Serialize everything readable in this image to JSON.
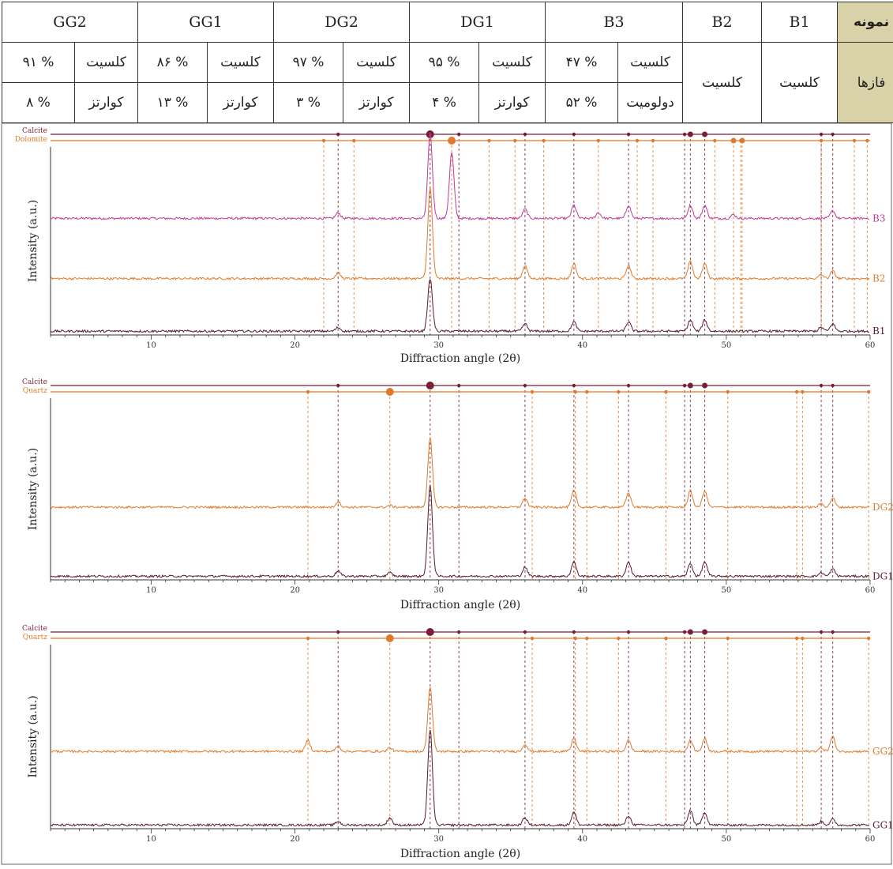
{
  "table": {
    "header_label": "نمونه",
    "row_label": "فازها",
    "samples": [
      {
        "name": "B1",
        "phases": [
          {
            "mineral": "کلسیت",
            "pct": ""
          }
        ]
      },
      {
        "name": "B2",
        "phases": [
          {
            "mineral": "کلسیت",
            "pct": ""
          }
        ]
      },
      {
        "name": "B3",
        "phases": [
          {
            "mineral": "کلسیت",
            "pct": "۴۷ %"
          },
          {
            "mineral": "دولومیت",
            "pct": "۵۲ %"
          }
        ]
      },
      {
        "name": "DG1",
        "phases": [
          {
            "mineral": "کلسیت",
            "pct": "۹۵ %"
          },
          {
            "mineral": "کوارتز",
            "pct": "۴ %"
          }
        ]
      },
      {
        "name": "DG2",
        "phases": [
          {
            "mineral": "کلسیت",
            "pct": "۹۷ %"
          },
          {
            "mineral": "کوارتز",
            "pct": "۳ %"
          }
        ]
      },
      {
        "name": "GG1",
        "phases": [
          {
            "mineral": "کلسیت",
            "pct": "۸۶ %"
          },
          {
            "mineral": "کوارتز",
            "pct": "۱۳ %"
          }
        ]
      },
      {
        "name": "GG2",
        "phases": [
          {
            "mineral": "کلسیت",
            "pct": "۹۱ %"
          },
          {
            "mineral": "کوارتز",
            "pct": "۸ %"
          }
        ]
      }
    ]
  },
  "colors": {
    "calcite": "#7a1f33",
    "dolomite": "#e07a2a",
    "quartz": "#e07a2a",
    "b1": "#5a1a28",
    "b2": "#e07a2a",
    "b3": "#c0399a",
    "dg1": "#5a1a28",
    "dg2": "#e07a2a",
    "gg1": "#5a1a28",
    "gg2": "#e07a2a",
    "table_header_bg": "#d9d2a8"
  },
  "chart_data": [
    {
      "type": "line",
      "xlabel": "Diffraction angle (2θ)",
      "ylabel": "Intensity (a.u.)",
      "xlim": [
        3,
        60
      ],
      "x_ticks": [
        10,
        20,
        30,
        40,
        50,
        60
      ],
      "reference_phases": [
        {
          "name": "Calcite",
          "peaks": [
            23.0,
            29.4,
            31.4,
            36.0,
            39.4,
            43.2,
            47.1,
            47.5,
            48.5,
            56.6,
            57.4
          ],
          "major": [
            29.4,
            47.5,
            48.5
          ]
        },
        {
          "name": "Dolomite",
          "peaks": [
            22.0,
            24.1,
            30.9,
            33.5,
            35.3,
            37.3,
            41.1,
            43.8,
            44.9,
            49.2,
            50.5,
            51.0,
            51.1,
            56.6,
            58.9,
            59.8
          ],
          "major": [
            30.9,
            50.5,
            51.1
          ]
        }
      ],
      "series": [
        {
          "name": "B3",
          "offset": 0.62,
          "peaks": [
            [
              29.4,
              0.45
            ],
            [
              30.9,
              0.35
            ],
            [
              23.0,
              0.03
            ],
            [
              36.0,
              0.05
            ],
            [
              39.4,
              0.07
            ],
            [
              43.2,
              0.07
            ],
            [
              47.5,
              0.07
            ],
            [
              48.5,
              0.07
            ],
            [
              41.1,
              0.03
            ],
            [
              57.4,
              0.04
            ],
            [
              50.5,
              0.02
            ]
          ]
        },
        {
          "name": "B2",
          "offset": 0.3,
          "peaks": [
            [
              29.4,
              0.48
            ],
            [
              23.0,
              0.03
            ],
            [
              36.0,
              0.07
            ],
            [
              39.4,
              0.08
            ],
            [
              43.2,
              0.07
            ],
            [
              47.5,
              0.09
            ],
            [
              48.5,
              0.08
            ],
            [
              57.4,
              0.04
            ],
            [
              56.6,
              0.02
            ]
          ]
        },
        {
          "name": "B1",
          "offset": 0.02,
          "peaks": [
            [
              29.4,
              0.28
            ],
            [
              23.0,
              0.02
            ],
            [
              36.0,
              0.04
            ],
            [
              39.4,
              0.05
            ],
            [
              43.2,
              0.05
            ],
            [
              47.5,
              0.06
            ],
            [
              48.5,
              0.06
            ],
            [
              57.4,
              0.04
            ],
            [
              56.6,
              0.02
            ]
          ]
        }
      ]
    },
    {
      "type": "line",
      "xlabel": "Diffraction angle (2θ)",
      "ylabel": "Intensity (a.u.)",
      "xlim": [
        3,
        60
      ],
      "x_ticks": [
        10,
        20,
        30,
        40,
        50,
        60
      ],
      "reference_phases": [
        {
          "name": "Calcite",
          "peaks": [
            23.0,
            29.4,
            31.4,
            36.0,
            39.4,
            43.2,
            47.1,
            47.5,
            48.5,
            56.6,
            57.4
          ],
          "major": [
            29.4,
            47.5,
            48.5
          ]
        },
        {
          "name": "Quartz",
          "peaks": [
            20.9,
            26.6,
            36.5,
            39.5,
            40.3,
            42.5,
            45.8,
            50.1,
            54.9,
            55.3,
            59.9
          ],
          "major": [
            26.6
          ]
        }
      ],
      "series": [
        {
          "name": "DG2",
          "offset": 0.4,
          "peaks": [
            [
              29.4,
              0.38
            ],
            [
              23.0,
              0.03
            ],
            [
              26.6,
              0.01
            ],
            [
              36.0,
              0.05
            ],
            [
              39.4,
              0.09
            ],
            [
              43.2,
              0.08
            ],
            [
              47.5,
              0.09
            ],
            [
              48.5,
              0.09
            ],
            [
              57.4,
              0.05
            ],
            [
              56.6,
              0.02
            ]
          ]
        },
        {
          "name": "DG1",
          "offset": 0.02,
          "peaks": [
            [
              29.4,
              0.5
            ],
            [
              23.0,
              0.03
            ],
            [
              26.6,
              0.02
            ],
            [
              36.0,
              0.05
            ],
            [
              39.4,
              0.08
            ],
            [
              43.2,
              0.08
            ],
            [
              47.5,
              0.07
            ],
            [
              48.5,
              0.08
            ],
            [
              57.4,
              0.04
            ],
            [
              56.6,
              0.02
            ]
          ]
        }
      ]
    },
    {
      "type": "line",
      "xlabel": "Diffraction angle (2θ)",
      "ylabel": "Intensity (a.u.)",
      "xlim": [
        3,
        60
      ],
      "x_ticks": [
        10,
        20,
        30,
        40,
        50,
        60
      ],
      "reference_phases": [
        {
          "name": "Calcite",
          "peaks": [
            23.0,
            29.4,
            31.4,
            36.0,
            39.4,
            43.2,
            47.1,
            47.5,
            48.5,
            56.6,
            57.4
          ],
          "major": [
            29.4,
            47.5,
            48.5
          ]
        },
        {
          "name": "Quartz",
          "peaks": [
            20.9,
            26.6,
            36.5,
            39.5,
            40.3,
            42.5,
            45.8,
            50.1,
            54.9,
            55.3,
            59.9
          ],
          "major": [
            26.6
          ]
        }
      ],
      "series": [
        {
          "name": "GG2",
          "offset": 0.42,
          "peaks": [
            [
              29.4,
              0.35
            ],
            [
              20.9,
              0.06
            ],
            [
              23.0,
              0.03
            ],
            [
              26.6,
              0.02
            ],
            [
              36.0,
              0.04
            ],
            [
              39.4,
              0.07
            ],
            [
              43.2,
              0.06
            ],
            [
              47.5,
              0.06
            ],
            [
              48.5,
              0.07
            ],
            [
              57.4,
              0.08
            ],
            [
              56.6,
              0.02
            ]
          ]
        },
        {
          "name": "GG1",
          "offset": 0.02,
          "peaks": [
            [
              29.4,
              0.52
            ],
            [
              26.6,
              0.04
            ],
            [
              23.0,
              0.02
            ],
            [
              36.0,
              0.04
            ],
            [
              39.4,
              0.07
            ],
            [
              43.2,
              0.05
            ],
            [
              47.5,
              0.08
            ],
            [
              48.5,
              0.07
            ],
            [
              57.4,
              0.03
            ],
            [
              56.6,
              0.02
            ]
          ]
        }
      ]
    }
  ]
}
